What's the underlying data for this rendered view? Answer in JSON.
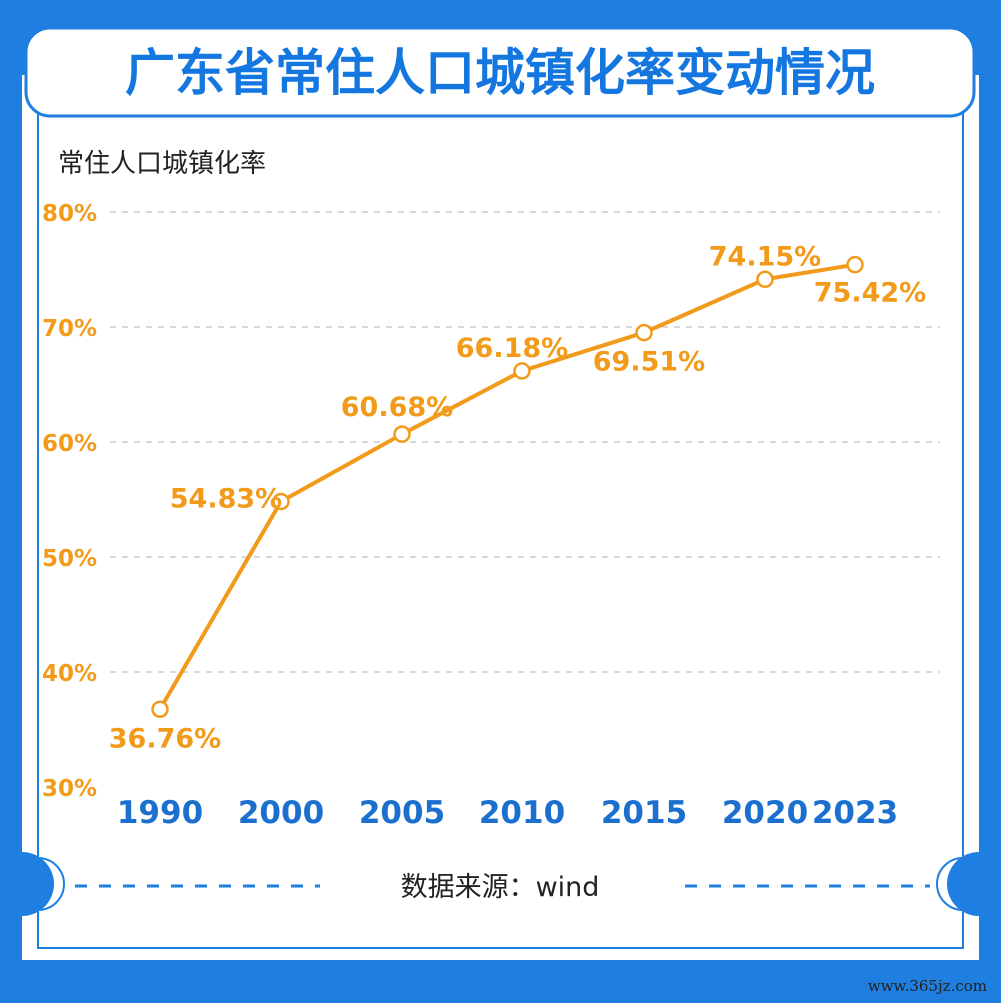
{
  "title": "广东省常住人口城镇化率变动情况",
  "source_text": "数据来源：wind",
  "watermark": "www.365jz.com",
  "colors": {
    "frame_blue": "#1e7fe0",
    "title_blue": "#1477e0",
    "line_orange": "#f29a1a",
    "category_blue": "#1b6fcf",
    "grid": "#cccccc"
  },
  "chart_data": {
    "type": "line",
    "ylabel": "常住人口城镇化率",
    "categories": [
      "1990",
      "2000",
      "2005",
      "2010",
      "2015",
      "2020",
      "2023"
    ],
    "series": [
      {
        "values": [
          36.76,
          54.83,
          60.68,
          66.18,
          69.51,
          74.15,
          75.42
        ],
        "labels": [
          "36.76%",
          "54.83%",
          "60.68%",
          "66.18%",
          "69.51%",
          "74.15%",
          "75.42%"
        ]
      }
    ],
    "ylim": [
      30,
      80
    ],
    "yticks": [
      30,
      40,
      50,
      60,
      70,
      80
    ],
    "ytick_labels": [
      "30%",
      "40%",
      "50%",
      "60%",
      "70%",
      "80%"
    ],
    "grid": true,
    "legend": "none"
  }
}
